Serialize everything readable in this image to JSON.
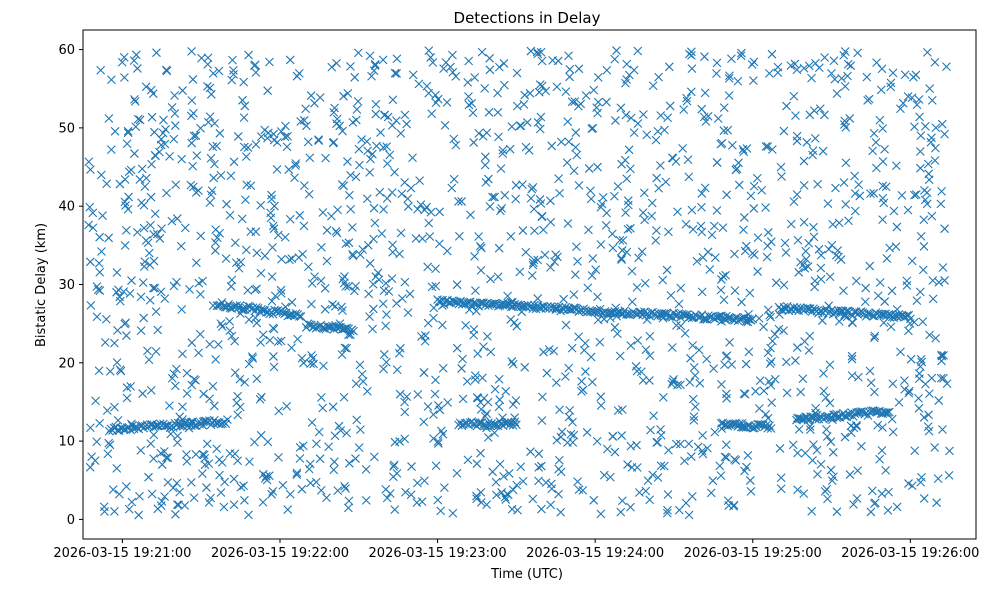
{
  "chart_data": {
    "type": "scatter",
    "title": "Detections in Delay",
    "xlabel": "Time (UTC)",
    "ylabel": "Bistatic Delay (km)",
    "marker": "x",
    "marker_color": "#1f77b4",
    "xlim_seconds": [
      -15,
      325
    ],
    "ylim": [
      -2.5,
      62.5
    ],
    "x_ticks": [
      {
        "seconds": 0,
        "label": "2026-03-15 19:21:00"
      },
      {
        "seconds": 60,
        "label": "2026-03-15 19:22:00"
      },
      {
        "seconds": 120,
        "label": "2026-03-15 19:23:00"
      },
      {
        "seconds": 180,
        "label": "2026-03-15 19:24:00"
      },
      {
        "seconds": 240,
        "label": "2026-03-15 19:25:00"
      },
      {
        "seconds": 300,
        "label": "2026-03-15 19:26:00"
      }
    ],
    "y_ticks": [
      0,
      10,
      20,
      30,
      40,
      50,
      60
    ],
    "x_data_range_seconds": [
      -13,
      315
    ],
    "y_data_range": [
      0.5,
      60
    ],
    "tracks": [
      {
        "name": "track-1",
        "t_start": 36,
        "t_end": 68,
        "y_start": 27.5,
        "y_end": 26.0
      },
      {
        "name": "track-2",
        "t_start": 120,
        "t_end": 240,
        "y_start": 27.8,
        "y_end": 25.5
      },
      {
        "name": "track-3",
        "t_start": 250,
        "t_end": 300,
        "y_start": 27.0,
        "y_end": 25.8
      },
      {
        "name": "track-4",
        "t_start": 70,
        "t_end": 88,
        "y_start": 24.8,
        "y_end": 24.3
      },
      {
        "name": "track-5",
        "t_start": -5,
        "t_end": 40,
        "y_start": 11.5,
        "y_end": 12.5
      },
      {
        "name": "track-6",
        "t_start": 128,
        "t_end": 150,
        "y_start": 12.2,
        "y_end": 12.2
      },
      {
        "name": "track-7",
        "t_start": 228,
        "t_end": 247,
        "y_start": 12.2,
        "y_end": 11.8
      },
      {
        "name": "track-8",
        "t_start": 257,
        "t_end": 292,
        "y_start": 12.8,
        "y_end": 13.8
      }
    ]
  }
}
